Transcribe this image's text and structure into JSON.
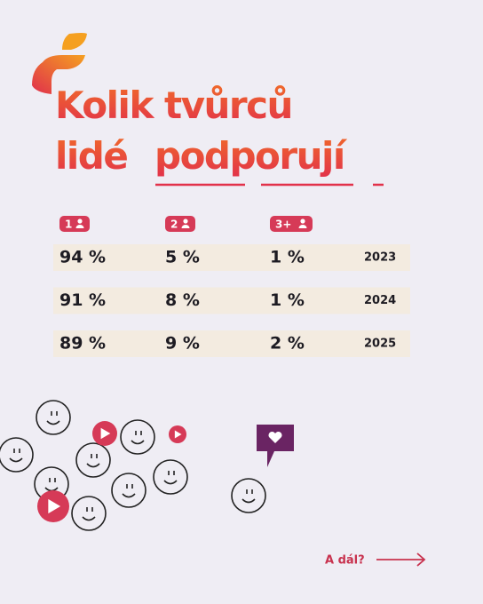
{
  "title": {
    "line1": "Kolik tvůrců",
    "line2_start": "lidé",
    "line2_end": "podporují"
  },
  "table": {
    "headers": [
      "1",
      "2",
      "3+"
    ],
    "rows": [
      [
        "94 %",
        "5 %",
        "1 %",
        "2023"
      ],
      [
        "91 %",
        "8 %",
        "1 %",
        "2024"
      ],
      [
        "89 %",
        "9 %",
        "2 %",
        "2025"
      ]
    ]
  },
  "footer": {
    "link": "A dál?"
  }
}
